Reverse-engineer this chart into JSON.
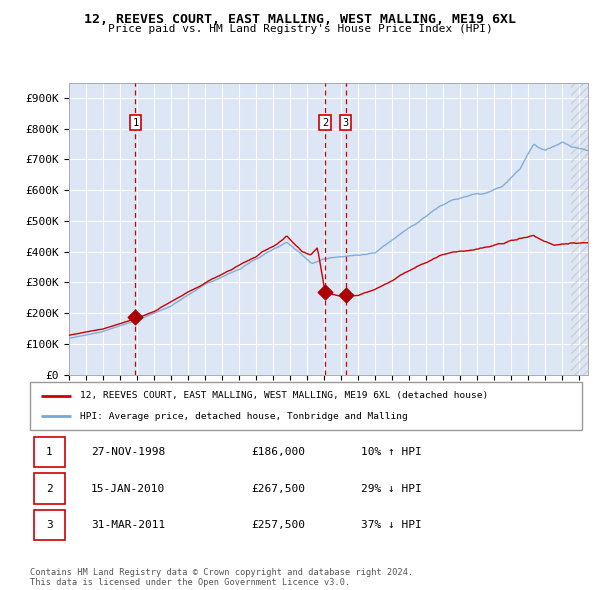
{
  "title": "12, REEVES COURT, EAST MALLING, WEST MALLING, ME19 6XL",
  "subtitle": "Price paid vs. HM Land Registry's House Price Index (HPI)",
  "background_color": "#dce6f5",
  "plot_bg_color": "#dce6f5",
  "grid_color": "#ffffff",
  "ylim": [
    0,
    950000
  ],
  "yticks": [
    0,
    100000,
    200000,
    300000,
    400000,
    500000,
    600000,
    700000,
    800000,
    900000
  ],
  "ytick_labels": [
    "£0",
    "£100K",
    "£200K",
    "£300K",
    "£400K",
    "£500K",
    "£600K",
    "£700K",
    "£800K",
    "£900K"
  ],
  "transactions": [
    {
      "date": 1998.9,
      "price": 186000,
      "label": "1"
    },
    {
      "date": 2010.05,
      "price": 267500,
      "label": "2"
    },
    {
      "date": 2011.25,
      "price": 257500,
      "label": "3"
    }
  ],
  "vlines": [
    1998.9,
    2010.05,
    2011.25
  ],
  "vline_labels": [
    "1",
    "2",
    "3"
  ],
  "legend_entries": [
    "12, REEVES COURT, EAST MALLING, WEST MALLING, ME19 6XL (detached house)",
    "HPI: Average price, detached house, Tonbridge and Malling"
  ],
  "table_rows": [
    [
      "1",
      "27-NOV-1998",
      "£186,000",
      "10% ↑ HPI"
    ],
    [
      "2",
      "15-JAN-2010",
      "£267,500",
      "29% ↓ HPI"
    ],
    [
      "3",
      "31-MAR-2011",
      "£257,500",
      "37% ↓ HPI"
    ]
  ],
  "footer": "Contains HM Land Registry data © Crown copyright and database right 2024.\nThis data is licensed under the Open Government Licence v3.0.",
  "red_line_color": "#cc0000",
  "blue_line_color": "#7ba7d4",
  "marker_color": "#aa0000",
  "vline_color": "#cc0000",
  "xmin": 1995.0,
  "xmax": 2025.5,
  "hatch_start": 2024.5
}
